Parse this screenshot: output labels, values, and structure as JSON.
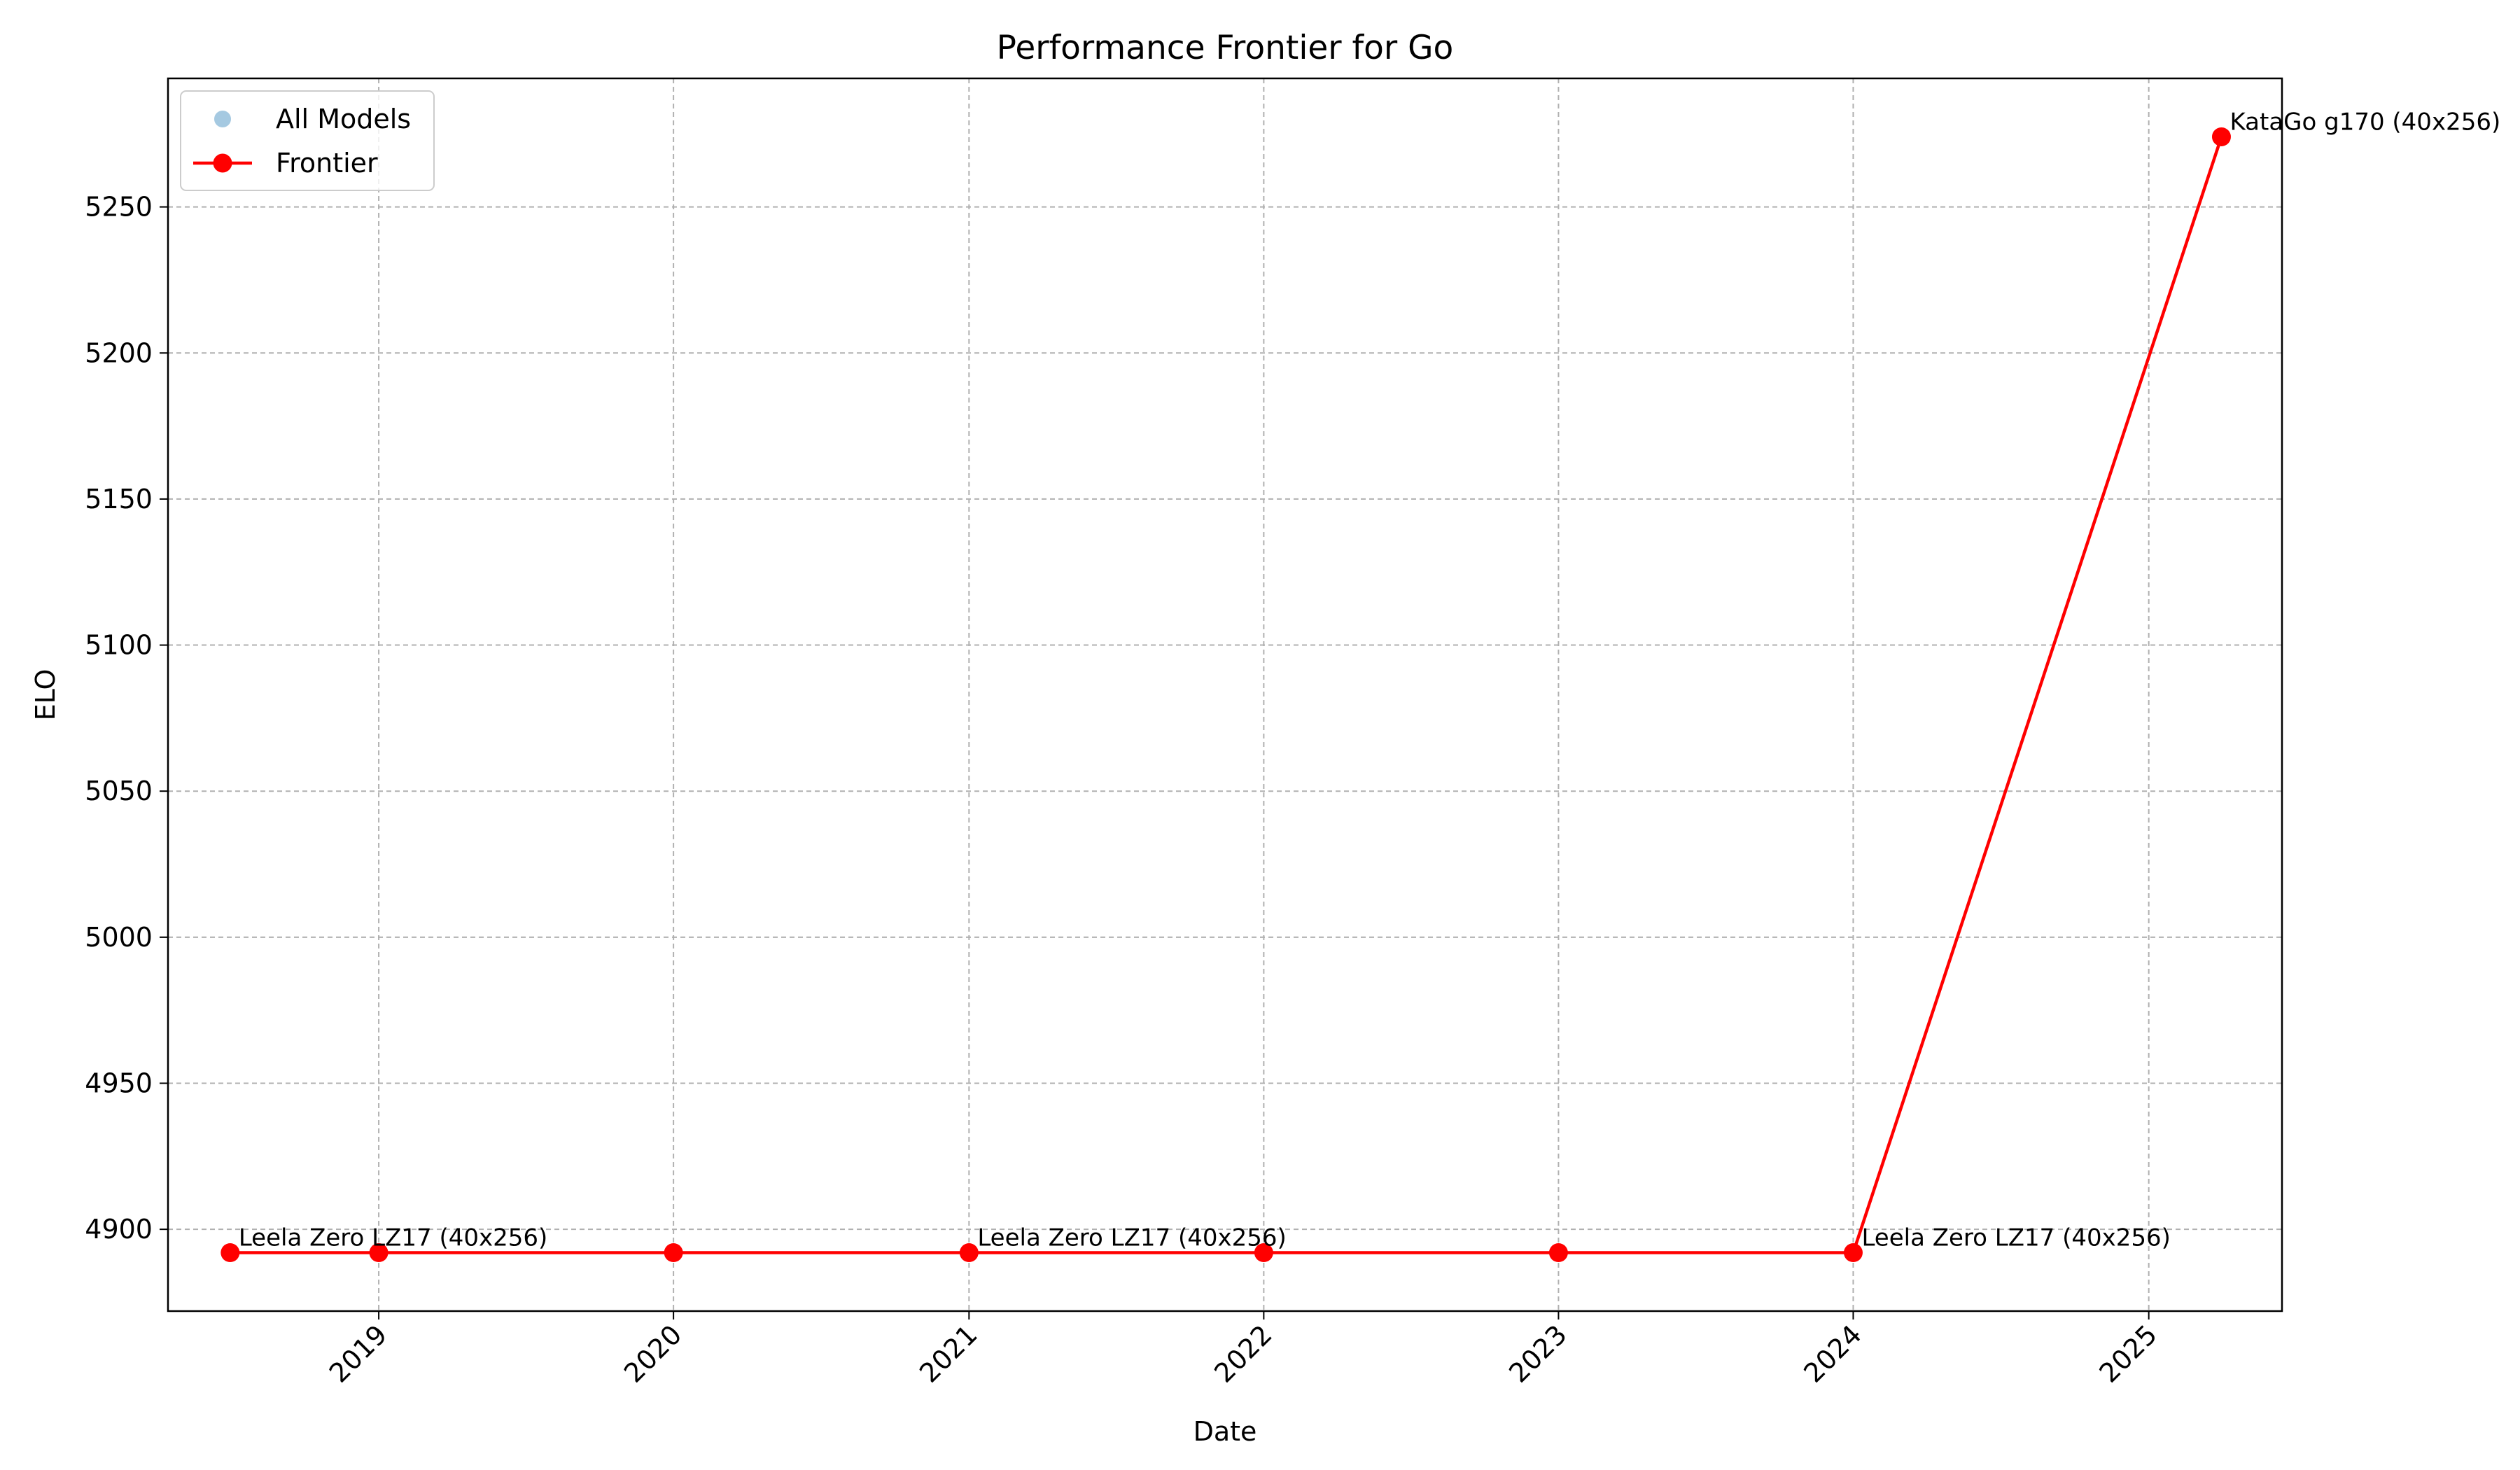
{
  "chart_data": {
    "type": "line",
    "title": "Performance Frontier for Go",
    "xlabel": "Date",
    "ylabel": "ELO",
    "x_axis": {
      "kind": "date",
      "range": [
        "2018-04-15",
        "2025-06-15"
      ],
      "ticks": [
        "2019-01-01",
        "2020-01-01",
        "2021-01-01",
        "2022-01-01",
        "2023-01-01",
        "2024-01-01",
        "2025-01-01"
      ],
      "tick_labels": [
        "2019",
        "2020",
        "2021",
        "2022",
        "2023",
        "2024",
        "2025"
      ],
      "tick_label_rotation": 45
    },
    "y_axis": {
      "range": [
        4872,
        5294
      ],
      "ticks": [
        4900,
        4950,
        5000,
        5050,
        5100,
        5150,
        5200,
        5250
      ],
      "tick_labels": [
        "4900",
        "4950",
        "5000",
        "5050",
        "5100",
        "5150",
        "5200",
        "5250"
      ]
    },
    "grid": true,
    "legend": {
      "position": "upper-left",
      "entries": [
        {
          "label": "All Models",
          "marker": "circle",
          "color": "#1f77b4",
          "alpha": 0.4
        },
        {
          "label": "Frontier",
          "marker": "line-circle",
          "color": "#ff0000"
        }
      ]
    },
    "series": [
      {
        "name": "All Models",
        "kind": "scatter",
        "color": "#1f77b4",
        "points": []
      },
      {
        "name": "Frontier",
        "kind": "line",
        "color": "#ff0000",
        "points": [
          {
            "x": "2018-07-01",
            "y": 4892
          },
          {
            "x": "2019-01-01",
            "y": 4892
          },
          {
            "x": "2020-01-01",
            "y": 4892
          },
          {
            "x": "2021-01-01",
            "y": 4892
          },
          {
            "x": "2022-01-01",
            "y": 4892
          },
          {
            "x": "2023-01-01",
            "y": 4892
          },
          {
            "x": "2024-01-01",
            "y": 4892
          },
          {
            "x": "2025-04-01",
            "y": 5274
          }
        ]
      }
    ],
    "annotations": [
      {
        "text": "Leela Zero LZ17 (40x256)",
        "x": "2018-07-01",
        "y": 4892
      },
      {
        "text": "Leela Zero LZ17 (40x256)",
        "x": "2021-01-01",
        "y": 4892
      },
      {
        "text": "Leela Zero LZ17 (40x256)",
        "x": "2024-01-01",
        "y": 4892
      },
      {
        "text": "KataGo g170 (40x256)",
        "x": "2025-04-01",
        "y": 5274
      }
    ]
  }
}
